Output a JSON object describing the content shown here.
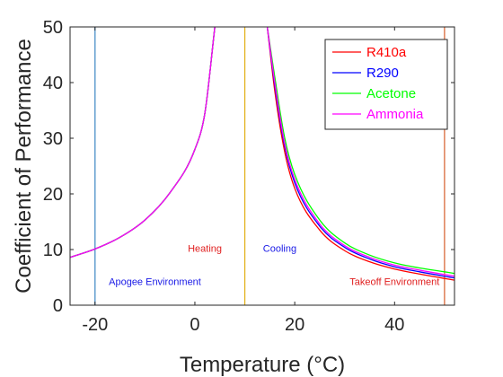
{
  "chart_data": {
    "type": "line",
    "xlabel": "Temperature (°C)",
    "ylabel": "Coefficient of Performance",
    "xlim": [
      -25,
      52
    ],
    "ylim": [
      0,
      50
    ],
    "xticks": [
      -20,
      0,
      20,
      40
    ],
    "xtick_labels": [
      "-20",
      "0",
      "20",
      "40"
    ],
    "yticks": [
      0,
      10,
      20,
      30,
      40,
      50
    ],
    "ytick_labels": [
      "0",
      "10",
      "20",
      "30",
      "40",
      "50"
    ],
    "grid": false,
    "legend_position": "top-right",
    "series": [
      {
        "name": "R410a",
        "color": "#ff0000",
        "heating": {
          "x": [
            -25,
            -20,
            -15,
            -10,
            -5,
            0,
            2,
            4
          ],
          "y": [
            8.6,
            10.1,
            12.2,
            15.3,
            20.2,
            28.0,
            34.5,
            50.0
          ]
        },
        "cooling": {
          "x": [
            14.5,
            16,
            18,
            20,
            25,
            30,
            35,
            40,
            45,
            50,
            52
          ],
          "y": [
            50.0,
            38.5,
            27.5,
            21.0,
            13.5,
            9.8,
            7.8,
            6.5,
            5.6,
            4.8,
            4.5
          ]
        }
      },
      {
        "name": "R290",
        "color": "#0000ff",
        "heating": {
          "x": [
            -25,
            -20,
            -15,
            -10,
            -5,
            0,
            2,
            4
          ],
          "y": [
            8.6,
            10.1,
            12.2,
            15.3,
            20.2,
            28.0,
            34.5,
            50.0
          ]
        },
        "cooling": {
          "x": [
            14.5,
            16,
            18,
            20,
            25,
            30,
            35,
            40,
            45,
            50,
            52
          ],
          "y": [
            50.0,
            39.5,
            28.5,
            22.0,
            14.2,
            10.4,
            8.3,
            6.9,
            6.0,
            5.2,
            4.9
          ]
        }
      },
      {
        "name": "Acetone",
        "color": "#00ff00",
        "heating": {
          "x": [
            -25,
            -20,
            -15,
            -10,
            -5,
            0,
            2,
            4
          ],
          "y": [
            8.6,
            10.1,
            12.2,
            15.3,
            20.2,
            28.0,
            34.5,
            50.0
          ]
        },
        "cooling": {
          "x": [
            14.5,
            16,
            18,
            20,
            25,
            30,
            35,
            40,
            45,
            50,
            52
          ],
          "y": [
            50.0,
            41.0,
            30.0,
            23.5,
            15.3,
            11.2,
            9.0,
            7.6,
            6.7,
            6.0,
            5.7
          ]
        }
      },
      {
        "name": "Ammonia",
        "color": "#ff00ff",
        "heating": {
          "x": [
            -25,
            -20,
            -15,
            -10,
            -5,
            0,
            2,
            4
          ],
          "y": [
            8.6,
            10.1,
            12.2,
            15.3,
            20.2,
            28.0,
            34.5,
            50.0
          ]
        },
        "cooling": {
          "x": [
            14.5,
            16,
            18,
            20,
            25,
            30,
            35,
            40,
            45,
            50,
            52
          ],
          "y": [
            50.0,
            40.0,
            29.0,
            22.6,
            14.6,
            10.7,
            8.6,
            7.2,
            6.3,
            5.5,
            5.2
          ]
        }
      }
    ],
    "vertical_lines": [
      {
        "x": -20,
        "color": "#4a8fc8"
      },
      {
        "x": 10,
        "color": "#e3b21c"
      },
      {
        "x": 50,
        "color": "#d96a3b"
      }
    ],
    "annotations": [
      {
        "text": "Heating",
        "color": "#e02020",
        "x": 2,
        "y": 9.6
      },
      {
        "text": "Cooling",
        "color": "#1a1ae6",
        "x": 17,
        "y": 9.6
      },
      {
        "text": "Apogee Environment",
        "color": "#1a1ae6",
        "x": -8,
        "y": 3.6
      },
      {
        "text": "Takeoff Environment",
        "color": "#e02020",
        "x": 40,
        "y": 3.6
      }
    ]
  }
}
